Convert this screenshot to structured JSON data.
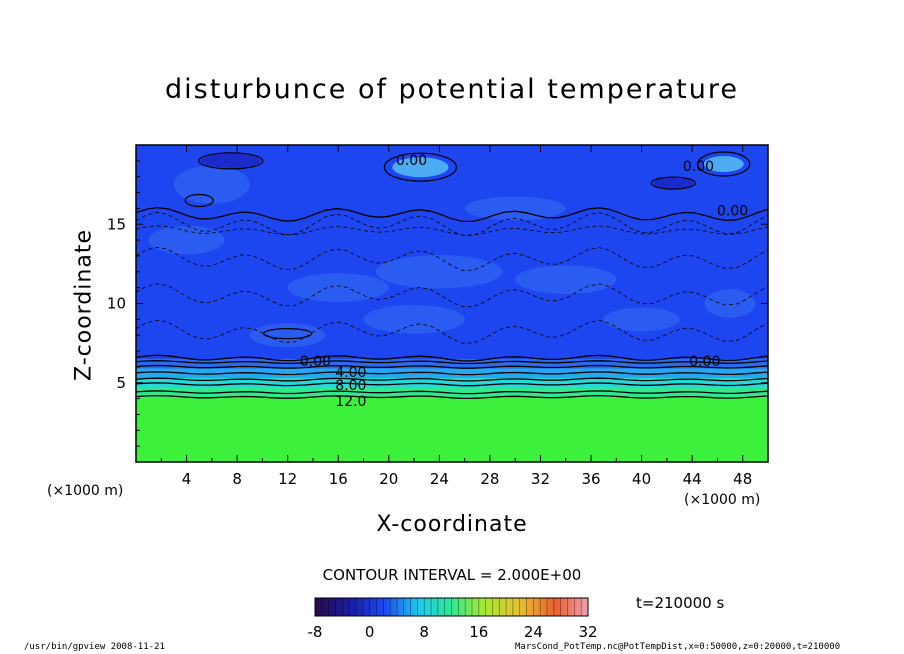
{
  "chart_data": {
    "type": "heatmap",
    "title": "disturbunce of potential temperature",
    "xlabel": "X-coordinate",
    "ylabel": "Z-coordinate",
    "x_unit": "(×1000 m)",
    "y_unit": "(×1000 m)",
    "xlim": [
      0,
      50
    ],
    "ylim": [
      0,
      20
    ],
    "x_ticks": [
      "4",
      "8",
      "12",
      "16",
      "20",
      "24",
      "28",
      "32",
      "36",
      "40",
      "44",
      "48"
    ],
    "y_ticks": [
      "5",
      "10",
      "15"
    ],
    "contour_labels": [
      {
        "text": "0.00",
        "x": 21.8,
        "z": 19.0
      },
      {
        "text": "0.00",
        "x": 44.5,
        "z": 18.6
      },
      {
        "text": "0.00",
        "x": 47.2,
        "z": 15.8
      },
      {
        "text": "0.00",
        "x": 14.2,
        "z": 6.3
      },
      {
        "text": "0.00",
        "x": 45.0,
        "z": 6.3
      },
      {
        "text": "4.00",
        "x": 17.0,
        "z": 5.6
      },
      {
        "text": "8.00",
        "x": 17.0,
        "z": 4.8
      },
      {
        "text": "12.0",
        "x": 17.0,
        "z": 3.8
      }
    ],
    "contour_interval": "CONTOUR INTERVAL = 2.000E+00",
    "colorbar": {
      "range": [
        -8,
        32
      ],
      "ticks": [
        "-8",
        "0",
        "8",
        "16",
        "24",
        "32"
      ]
    },
    "field_summary": {
      "lower_layer_value": 12.5,
      "transition_top": 6.5,
      "upper_layer_value": -1.0
    }
  },
  "annotations": {
    "time": "t=210000 s",
    "footer_left": "/usr/bin/gpview   2008-11-21",
    "footer_right": "MarsCond_PotTemp.nc@PotTempDist,x=0:50000,z=0:20000,t=210000"
  },
  "colors": {
    "upper": "#1e46f0",
    "lower": "#3cf03c",
    "transition": [
      "#2a6cf0",
      "#24a8f0",
      "#28d8d8",
      "#30e890"
    ]
  }
}
